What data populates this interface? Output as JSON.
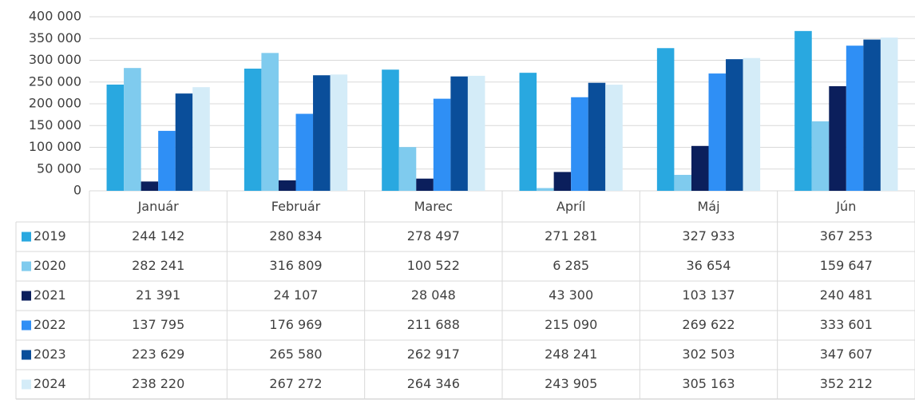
{
  "chart_data": {
    "type": "bar",
    "categories": [
      "Január",
      "Február",
      "Marec",
      "Apríl",
      "Máj",
      "Jún"
    ],
    "series": [
      {
        "name": "2019",
        "color": "#29a8e0",
        "values": [
          244142,
          280834,
          278497,
          271281,
          327933,
          367253
        ],
        "value_labels": [
          "244 142",
          "280 834",
          "278 497",
          "271 281",
          "327 933",
          "367 253"
        ]
      },
      {
        "name": "2020",
        "color": "#7fcbee",
        "values": [
          282241,
          316809,
          100522,
          6285,
          36654,
          159647
        ],
        "value_labels": [
          "282 241",
          "316 809",
          "100 522",
          "6 285",
          "36 654",
          "159 647"
        ]
      },
      {
        "name": "2021",
        "color": "#0b1f5c",
        "values": [
          21391,
          24107,
          28048,
          43300,
          103137,
          240481
        ],
        "value_labels": [
          "21 391",
          "24 107",
          "28 048",
          "43 300",
          "103 137",
          "240 481"
        ]
      },
      {
        "name": "2022",
        "color": "#2f8ff5",
        "values": [
          137795,
          176969,
          211688,
          215090,
          269622,
          333601
        ],
        "value_labels": [
          "137 795",
          "176 969",
          "211 688",
          "215 090",
          "269 622",
          "333 601"
        ]
      },
      {
        "name": "2023",
        "color": "#0a4e9a",
        "values": [
          223629,
          265580,
          262917,
          248241,
          302503,
          347607
        ],
        "value_labels": [
          "223 629",
          "265 580",
          "262 917",
          "248 241",
          "302 503",
          "347 607"
        ]
      },
      {
        "name": "2024",
        "color": "#d4ecf8",
        "values": [
          238220,
          267272,
          264346,
          243905,
          305163,
          352212
        ],
        "value_labels": [
          "238 220",
          "267 272",
          "264 346",
          "243 905",
          "305 163",
          "352 212"
        ]
      }
    ],
    "ylim": [
      0,
      400000
    ],
    "yticks": [
      0,
      {
        "value": 50000,
        "label": "50 000"
      },
      {
        "value": 100000,
        "label": "100 000"
      },
      {
        "value": 150000,
        "label": "150 000"
      },
      {
        "value": 200000,
        "label": "200 000"
      },
      {
        "value": 250000,
        "label": "250 000"
      },
      {
        "value": 300000,
        "label": "300 000"
      },
      {
        "value": 350000,
        "label": "350 000"
      },
      {
        "value": 400000,
        "label": "400 000"
      }
    ],
    "grid": true
  }
}
